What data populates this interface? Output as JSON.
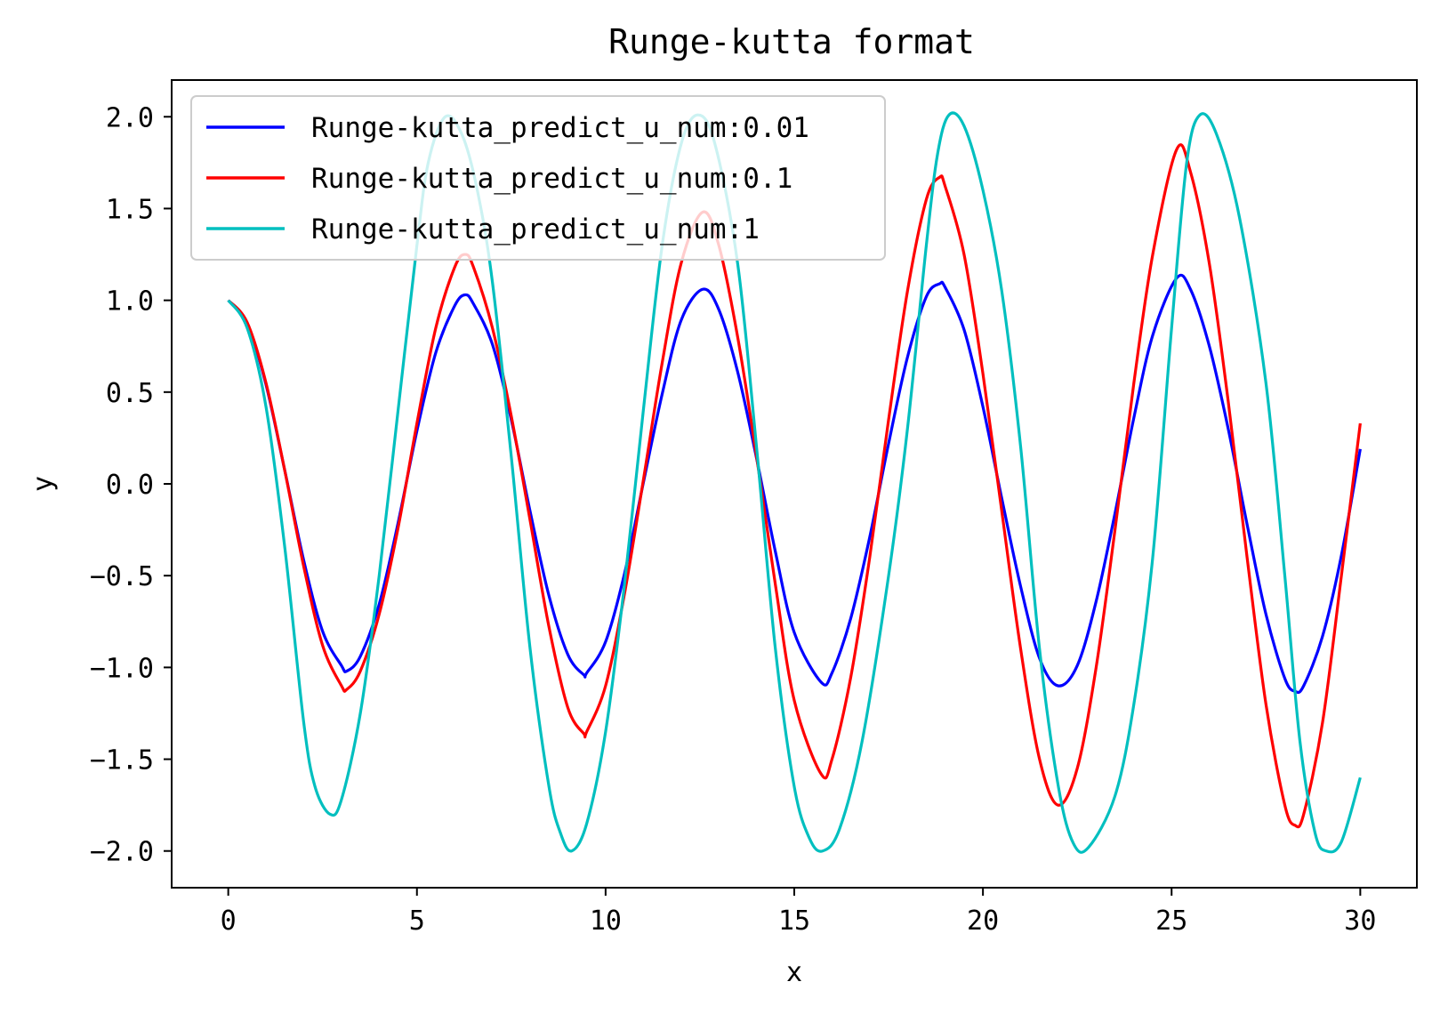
{
  "chart_data": {
    "type": "line",
    "title": "Runge-kutta format",
    "xlabel": "x",
    "ylabel": "y",
    "xlim": [
      -1.5,
      31.5
    ],
    "ylim": [
      -2.2,
      2.2
    ],
    "x_ticks": [
      0,
      5,
      10,
      15,
      20,
      25,
      30
    ],
    "x_tick_labels": [
      "0",
      "5",
      "10",
      "15",
      "20",
      "25",
      "30"
    ],
    "y_ticks": [
      2.0,
      1.5,
      1.0,
      0.5,
      0.0,
      -0.5,
      -1.0,
      -1.5,
      -2.0
    ],
    "y_tick_labels": [
      "2.0",
      "1.5",
      "1.0",
      "0.5",
      "0.0",
      "−0.5",
      "−1.0",
      "−1.5",
      "−2.0"
    ],
    "grid": false,
    "legend_position": "upper-left",
    "series": [
      {
        "name": "Runge-kutta_predict_u_num:0.01",
        "color": "#0000ff",
        "x": [
          0,
          0.5,
          1,
          1.5,
          2,
          2.5,
          3,
          3.14,
          3.5,
          4,
          4.5,
          5,
          5.5,
          6,
          6.28,
          6.5,
          7,
          7.5,
          8,
          8.5,
          9,
          9.42,
          9.5,
          10,
          10.5,
          11,
          11.5,
          12,
          12.57,
          13,
          13.5,
          14,
          14.5,
          15,
          15.71,
          16,
          16.5,
          17,
          17.5,
          18,
          18.5,
          18.85,
          19,
          19.5,
          20,
          20.5,
          21,
          21.5,
          21.99,
          22.5,
          23,
          23.5,
          24,
          24.5,
          25.13,
          25.5,
          26,
          26.5,
          27,
          27.5,
          28,
          28.27,
          28.5,
          29,
          29.5,
          30
        ],
        "y": [
          1.0,
          0.878,
          0.541,
          0.071,
          -0.417,
          -0.803,
          -0.99,
          -1.02,
          -0.94,
          -0.656,
          -0.213,
          0.289,
          0.715,
          0.97,
          1.03,
          0.98,
          0.76,
          0.35,
          -0.15,
          -0.61,
          -0.93,
          -1.04,
          -1.03,
          -0.86,
          -0.49,
          0.005,
          0.49,
          0.89,
          1.06,
          0.95,
          0.61,
          0.14,
          -0.37,
          -0.81,
          -1.08,
          -1.03,
          -0.73,
          -0.29,
          0.22,
          0.69,
          1.02,
          1.09,
          1.07,
          0.84,
          0.42,
          -0.08,
          -0.56,
          -0.95,
          -1.1,
          -0.99,
          -0.64,
          -0.16,
          0.36,
          0.81,
          1.12,
          1.06,
          0.75,
          0.3,
          -0.22,
          -0.71,
          -1.06,
          -1.13,
          -1.1,
          -0.83,
          -0.39,
          0.19
        ]
      },
      {
        "name": "Runge-kutta_predict_u_num:0.1",
        "color": "#ff0000",
        "x": [
          0,
          0.5,
          1,
          1.5,
          2,
          2.5,
          3,
          3.14,
          3.5,
          4,
          4.5,
          5,
          5.5,
          6,
          6.28,
          6.5,
          7,
          7.5,
          8,
          8.5,
          9,
          9.42,
          9.5,
          10,
          10.5,
          11,
          11.5,
          12,
          12.57,
          13,
          13.5,
          14,
          14.5,
          15,
          15.71,
          16,
          16.5,
          17,
          17.5,
          18,
          18.5,
          18.85,
          19,
          19.5,
          20,
          20.5,
          21,
          21.5,
          21.99,
          22.5,
          23,
          23.5,
          24,
          24.5,
          25.13,
          25.5,
          26,
          26.5,
          27,
          27.5,
          28,
          28.27,
          28.5,
          29,
          29.5,
          30
        ],
        "y": [
          1.0,
          0.88,
          0.55,
          0.07,
          -0.45,
          -0.88,
          -1.1,
          -1.12,
          -1.02,
          -0.71,
          -0.24,
          0.33,
          0.85,
          1.18,
          1.25,
          1.18,
          0.85,
          0.37,
          -0.2,
          -0.78,
          -1.22,
          -1.36,
          -1.35,
          -1.1,
          -0.6,
          0.02,
          0.66,
          1.2,
          1.48,
          1.3,
          0.8,
          0.15,
          -0.55,
          -1.18,
          -1.58,
          -1.5,
          -1.05,
          -0.4,
          0.35,
          1.05,
          1.55,
          1.67,
          1.62,
          1.25,
          0.6,
          -0.15,
          -0.9,
          -1.5,
          -1.75,
          -1.55,
          -1.0,
          -0.25,
          0.55,
          1.25,
          1.82,
          1.7,
          1.2,
          0.45,
          -0.4,
          -1.2,
          -1.75,
          -1.86,
          -1.8,
          -1.3,
          -0.5,
          0.33
        ]
      },
      {
        "name": "Runge-kutta_predict_u_num:1",
        "color": "#00bfbf",
        "x": [
          0,
          0.5,
          1,
          1.5,
          2,
          2.3,
          2.7,
          3,
          3.5,
          4,
          4.5,
          5,
          5.3,
          5.75,
          6.2,
          6.6,
          7,
          7.5,
          8,
          8.5,
          8.8,
          9.1,
          9.5,
          10,
          10.5,
          11,
          11.5,
          12,
          12.45,
          12.9,
          13.5,
          14,
          14.5,
          15,
          15.4,
          15.75,
          16.2,
          16.8,
          17.5,
          18,
          18.5,
          18.8,
          19.1,
          19.5,
          20,
          20.5,
          21,
          21.5,
          22,
          22.4,
          22.8,
          23.5,
          24,
          24.5,
          25,
          25.4,
          25.75,
          26.2,
          26.8,
          27.5,
          28,
          28.4,
          28.8,
          29.1,
          29.5,
          30
        ],
        "y": [
          1.0,
          0.85,
          0.42,
          -0.35,
          -1.3,
          -1.65,
          -1.8,
          -1.72,
          -1.25,
          -0.5,
          0.4,
          1.3,
          1.75,
          2.0,
          1.9,
          1.6,
          1.1,
          0.15,
          -0.9,
          -1.65,
          -1.9,
          -2.0,
          -1.85,
          -1.35,
          -0.55,
          0.4,
          1.3,
          1.85,
          2.01,
          1.85,
          1.2,
          0.2,
          -0.9,
          -1.65,
          -1.93,
          -2.0,
          -1.88,
          -1.4,
          -0.5,
          0.3,
          1.3,
          1.8,
          2.01,
          1.95,
          1.6,
          1.05,
          0.2,
          -0.9,
          -1.65,
          -1.96,
          -1.98,
          -1.7,
          -1.2,
          -0.4,
          0.85,
          1.75,
          2.01,
          1.9,
          1.45,
          0.55,
          -0.5,
          -1.4,
          -1.9,
          -2.0,
          -1.95,
          -1.6
        ]
      }
    ]
  }
}
